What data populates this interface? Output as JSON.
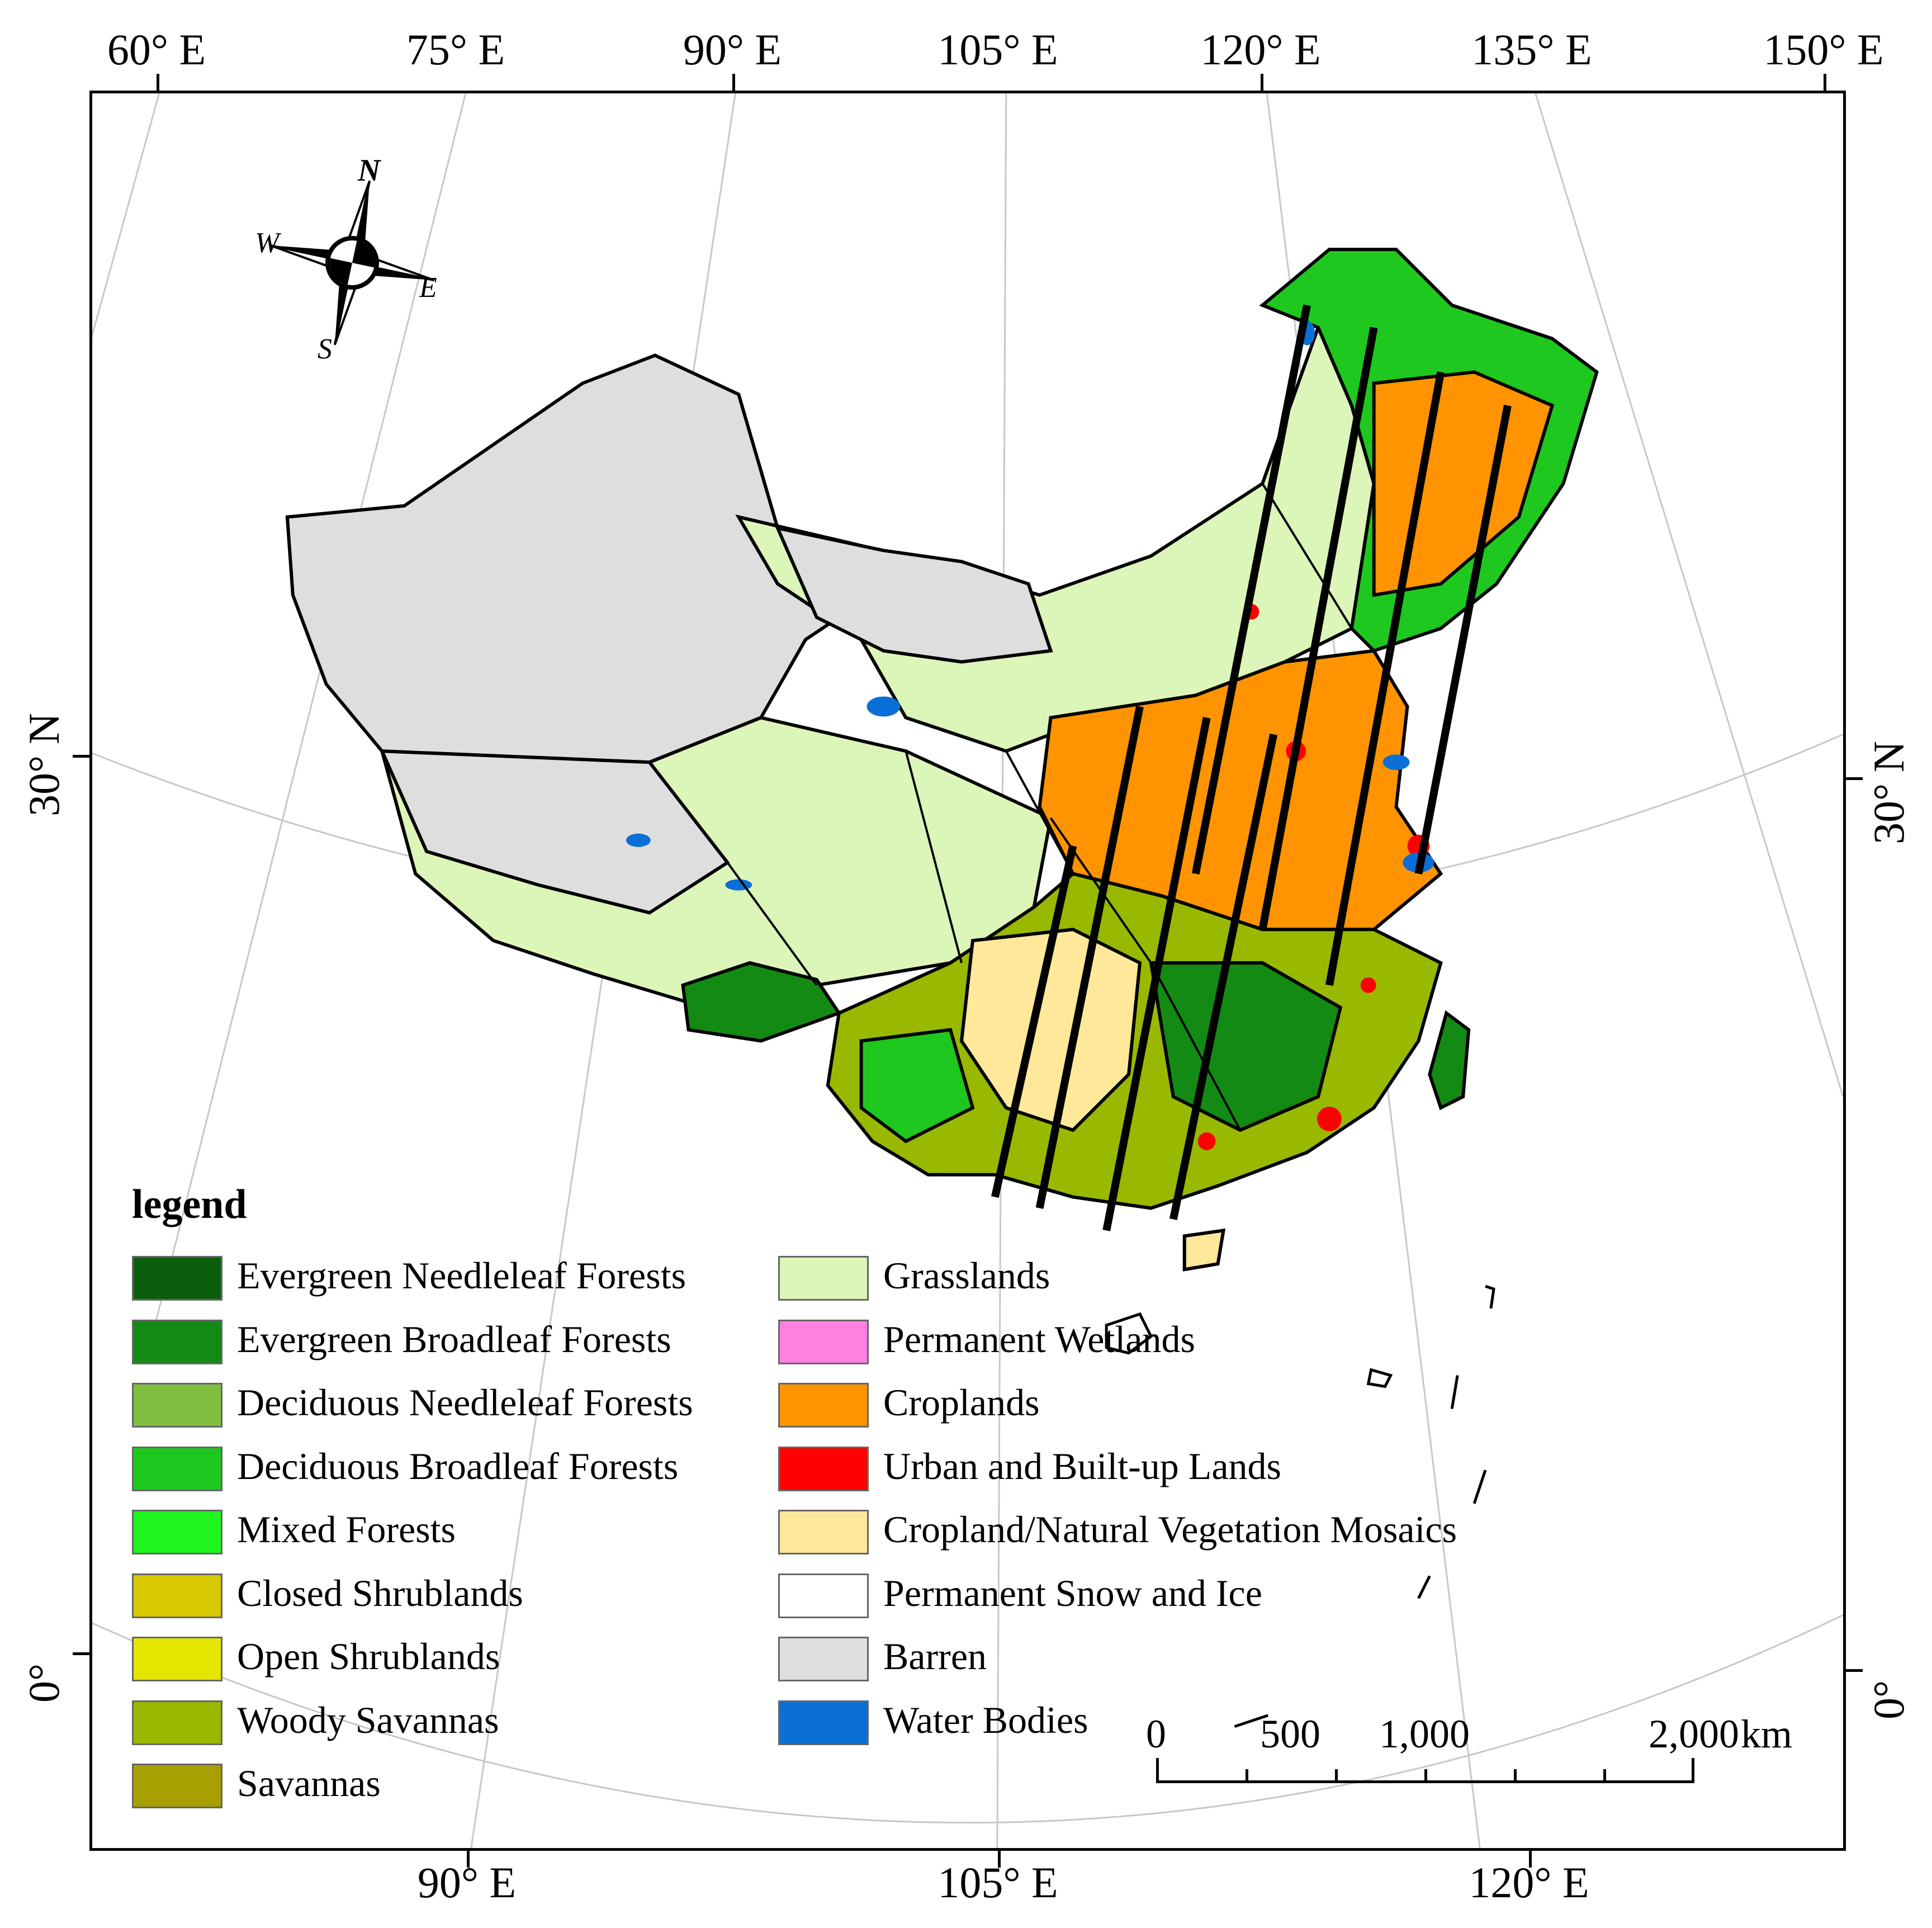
{
  "map": {
    "top_longitudes": [
      "60° E",
      "75° E",
      "90° E",
      "105° E",
      "120° E",
      "135° E",
      "150° E"
    ],
    "bottom_longitudes": [
      "90° E",
      "105° E",
      "120° E"
    ],
    "left_latitudes": [
      "30° N",
      "0°"
    ],
    "right_latitudes": [
      "30° N",
      "0°"
    ]
  },
  "compass": {
    "n": "N",
    "e": "E",
    "s": "S",
    "w": "W"
  },
  "legend": {
    "title": "legend",
    "left_items": [
      {
        "label": "Evergreen Needleleaf Forests",
        "color": "#0b5e0b"
      },
      {
        "label": "Evergreen Broadleaf Forests",
        "color": "#138a13"
      },
      {
        "label": "Deciduous Needleleaf Forests",
        "color": "#7fbf3f"
      },
      {
        "label": "Deciduous Broadleaf Forests",
        "color": "#1ec81e"
      },
      {
        "label": "Mixed Forests",
        "color": "#1ef51e"
      },
      {
        "label": "Closed Shrublands",
        "color": "#d8c800"
      },
      {
        "label": "Open Shrublands",
        "color": "#e5e500"
      },
      {
        "label": "Woody Savannas",
        "color": "#99b800"
      },
      {
        "label": "Savannas",
        "color": "#a8a000"
      }
    ],
    "right_items": [
      {
        "label": "Grasslands",
        "color": "#dcf5b8"
      },
      {
        "label": "Permanent Wetlands",
        "color": "#ff80e0"
      },
      {
        "label": "Croplands",
        "color": "#ff9400"
      },
      {
        "label": "Urban and Built-up Lands",
        "color": "#ff0000"
      },
      {
        "label": "Cropland/Natural Vegetation Mosaics",
        "color": "#ffe89a"
      },
      {
        "label": "Permanent Snow and Ice",
        "color": "#ffffff"
      },
      {
        "label": "Barren",
        "color": "#dedede"
      },
      {
        "label": "Water Bodies",
        "color": "#0a6fd6"
      }
    ]
  },
  "scalebar": {
    "labels": [
      "0",
      "500",
      "1,000",
      "2,000"
    ],
    "unit": "km"
  }
}
